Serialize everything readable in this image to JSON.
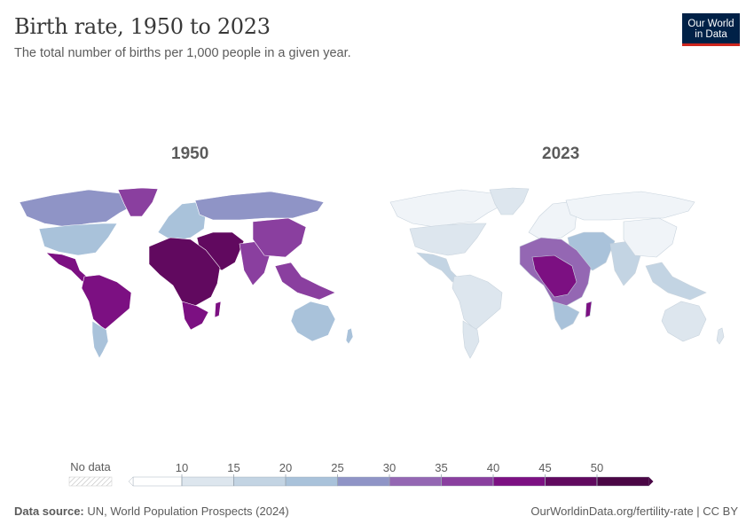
{
  "header": {
    "title": "Birth rate, 1950 to 2023",
    "subtitle": "The total number of births per 1,000 people in a given year.",
    "logo_line1": "Our World",
    "logo_line2": "in Data"
  },
  "panels": [
    {
      "year_label": "1950"
    },
    {
      "year_label": "2023"
    }
  ],
  "legend": {
    "no_data_label": "No data",
    "ticks": [
      "10",
      "15",
      "20",
      "25",
      "30",
      "35",
      "40",
      "45",
      "50"
    ],
    "colors": [
      "#ffffff",
      "#dde6ee",
      "#c3d4e3",
      "#a9c2da",
      "#8f94c6",
      "#9467b3",
      "#8a3f9f",
      "#7c1082",
      "#61095f",
      "#4a0645"
    ]
  },
  "footer": {
    "source_label": "Data source:",
    "source_value": "UN, World Population Prospects (2024)",
    "url": "OurWorldinData.org/fertility-rate | CC BY"
  },
  "regions_1950": {
    "north_america": "#8f94c6",
    "usa": "#a9c2da",
    "mexico_central": "#7c1082",
    "south_america": "#7c1082",
    "argentina": "#a9c2da",
    "greenland": "#8a3f9f",
    "europe": "#a9c2da",
    "russia": "#8f94c6",
    "middle_east": "#61095f",
    "africa": "#61095f",
    "southern_africa": "#7c1082",
    "south_asia": "#8a3f9f",
    "china": "#8a3f9f",
    "se_asia": "#8a3f9f",
    "australia": "#a9c2da"
  },
  "regions_2023": {
    "north_america": "#f0f4f8",
    "usa": "#dde6ee",
    "mexico_central": "#c3d4e3",
    "south_america": "#dde6ee",
    "argentina": "#dde6ee",
    "greenland": "#dde6ee",
    "europe": "#f0f4f8",
    "russia": "#f0f4f8",
    "middle_east": "#a9c2da",
    "africa": "#9467b3",
    "central_africa": "#7c1082",
    "southern_africa": "#a9c2da",
    "south_asia": "#c3d4e3",
    "china": "#f0f4f8",
    "se_asia": "#c3d4e3",
    "australia": "#dde6ee"
  }
}
